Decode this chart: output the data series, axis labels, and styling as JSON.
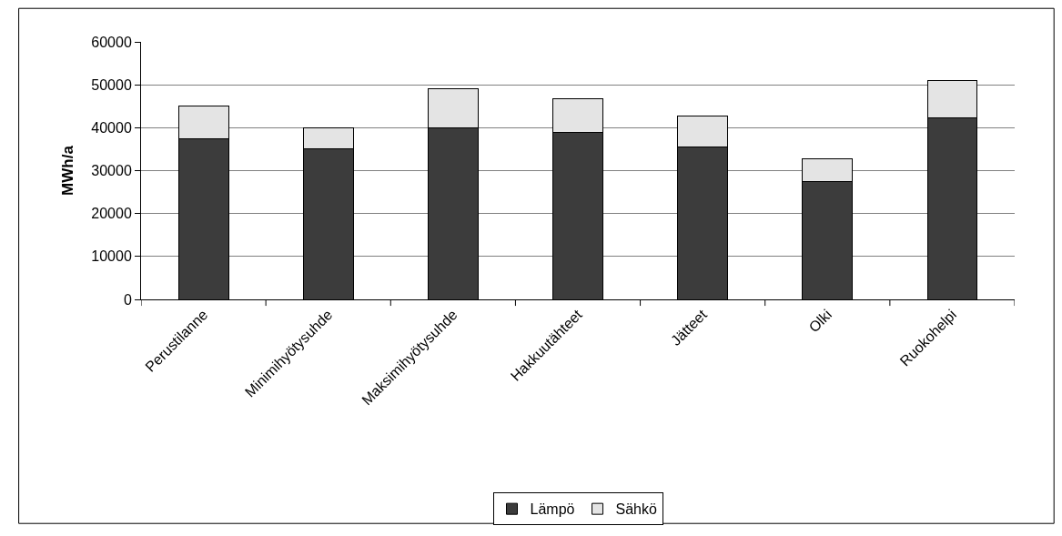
{
  "chart_data": {
    "type": "bar",
    "stacked": true,
    "ylabel": "MWh/a",
    "categories": [
      "Perustilanne",
      "Minimihyötysuhde",
      "Maksimihyötysuhde",
      "Hakkuutähteet",
      "Jätteet",
      "Olki",
      "Ruokohelpi"
    ],
    "series": [
      {
        "name": "Lämpö",
        "color": "#3c3c3c",
        "values": [
          37500,
          35000,
          40000,
          38800,
          35500,
          27400,
          42400
        ]
      },
      {
        "name": "Sähkö",
        "color": "#e4e4e4",
        "values": [
          7500,
          5000,
          9000,
          8000,
          7300,
          5300,
          8500
        ]
      }
    ],
    "ylim": [
      0,
      60000
    ],
    "yticks": [
      0,
      10000,
      20000,
      30000,
      40000,
      50000,
      60000
    ],
    "grid": "y",
    "legend": "bottom"
  }
}
